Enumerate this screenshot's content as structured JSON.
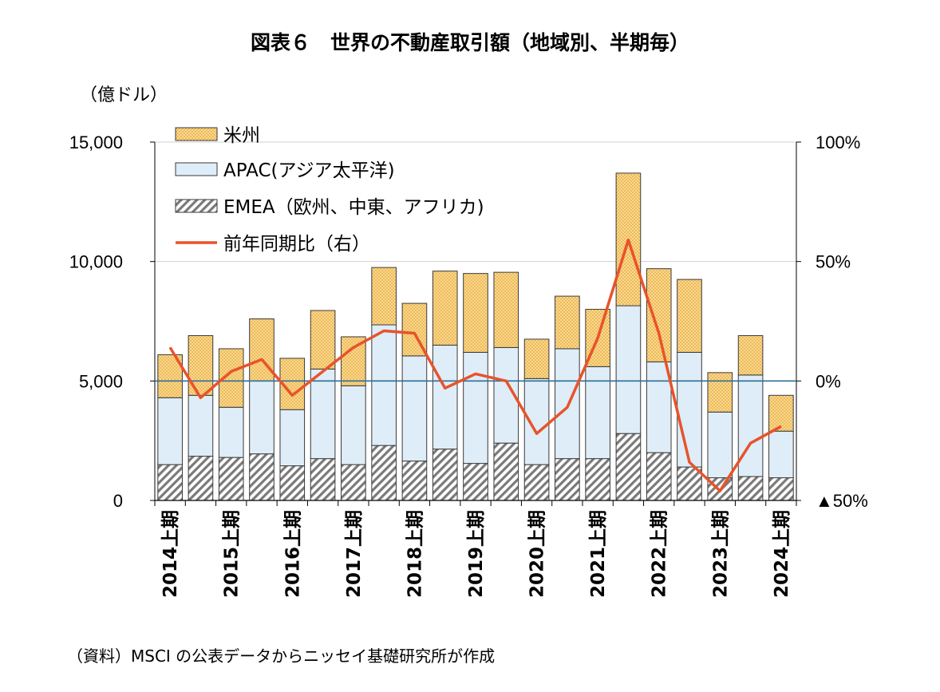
{
  "title": "図表６　世界の不動産取引額（地域別、半期毎）",
  "unit": "（億ドル）",
  "source": "（資料）MSCI の公表データからニッセイ基礎研究所が作成",
  "chart_data": {
    "type": "bar",
    "stacked": true,
    "categories": [
      "2014上期",
      "2014下期",
      "2015上期",
      "2015下期",
      "2016上期",
      "2016下期",
      "2017上期",
      "2017下期",
      "2018上期",
      "2018下期",
      "2019上期",
      "2019下期",
      "2020上期",
      "2020下期",
      "2021上期",
      "2021下期",
      "2022上期",
      "2022下期",
      "2023上期",
      "2023下期",
      "2024上期"
    ],
    "category_labels": [
      "2014上期",
      "",
      "2015上期",
      "",
      "2016上期",
      "",
      "2017上期",
      "",
      "2018上期",
      "",
      "2019上期",
      "",
      "2020上期",
      "",
      "2021上期",
      "",
      "2022上期",
      "",
      "2023上期",
      "",
      "2024上期"
    ],
    "series": [
      {
        "name": "EMEA（欧州、中東、アフリカ)",
        "key": "emea",
        "fill": "hatch-gray",
        "values": [
          1500,
          1850,
          1800,
          1950,
          1450,
          1750,
          1500,
          2300,
          1650,
          2150,
          1550,
          2400,
          1500,
          1750,
          1750,
          2800,
          2000,
          1400,
          950,
          1000,
          950
        ]
      },
      {
        "name": "APAC(アジア太平洋)",
        "key": "apac",
        "fill": "#deedf7",
        "values": [
          2800,
          2550,
          2100,
          3050,
          2350,
          3750,
          3300,
          5050,
          4400,
          4350,
          4650,
          4000,
          3600,
          4600,
          3850,
          5350,
          3800,
          4800,
          2750,
          4250,
          1950
        ]
      },
      {
        "name": "米州",
        "key": "americas",
        "fill": "dots-orange",
        "values": [
          1800,
          2500,
          2450,
          2600,
          2150,
          2450,
          2050,
          2400,
          2200,
          3100,
          3300,
          3150,
          1650,
          2200,
          2400,
          5550,
          3900,
          3050,
          1650,
          1650,
          1500
        ]
      }
    ],
    "line": {
      "name": "前年同期比（右）",
      "color": "#e8532b",
      "values": [
        14,
        -7,
        4,
        9,
        -6,
        4,
        14,
        21,
        20,
        -3,
        3,
        0,
        -22,
        -11,
        18,
        59,
        20,
        -34,
        -46,
        -26,
        -19
      ]
    },
    "y_left": {
      "min": 0,
      "max": 15000,
      "ticks": [
        0,
        5000,
        10000,
        15000
      ],
      "tick_labels": [
        "0",
        "5,000",
        "10,000",
        "15,000"
      ]
    },
    "y_right": {
      "min": -50,
      "max": 100,
      "ticks": [
        -50,
        0,
        50,
        100
      ],
      "tick_labels": [
        "▲50%",
        "0%",
        "50%",
        "100%"
      ]
    },
    "legend": [
      "米州",
      "APAC(アジア太平洋)",
      "EMEA（欧州、中東、アフリカ)",
      "前年同期比（右）"
    ],
    "legend_position": "top-left inside plot",
    "grid": "horizontal",
    "zero_line_color": "#2f6e9a"
  }
}
